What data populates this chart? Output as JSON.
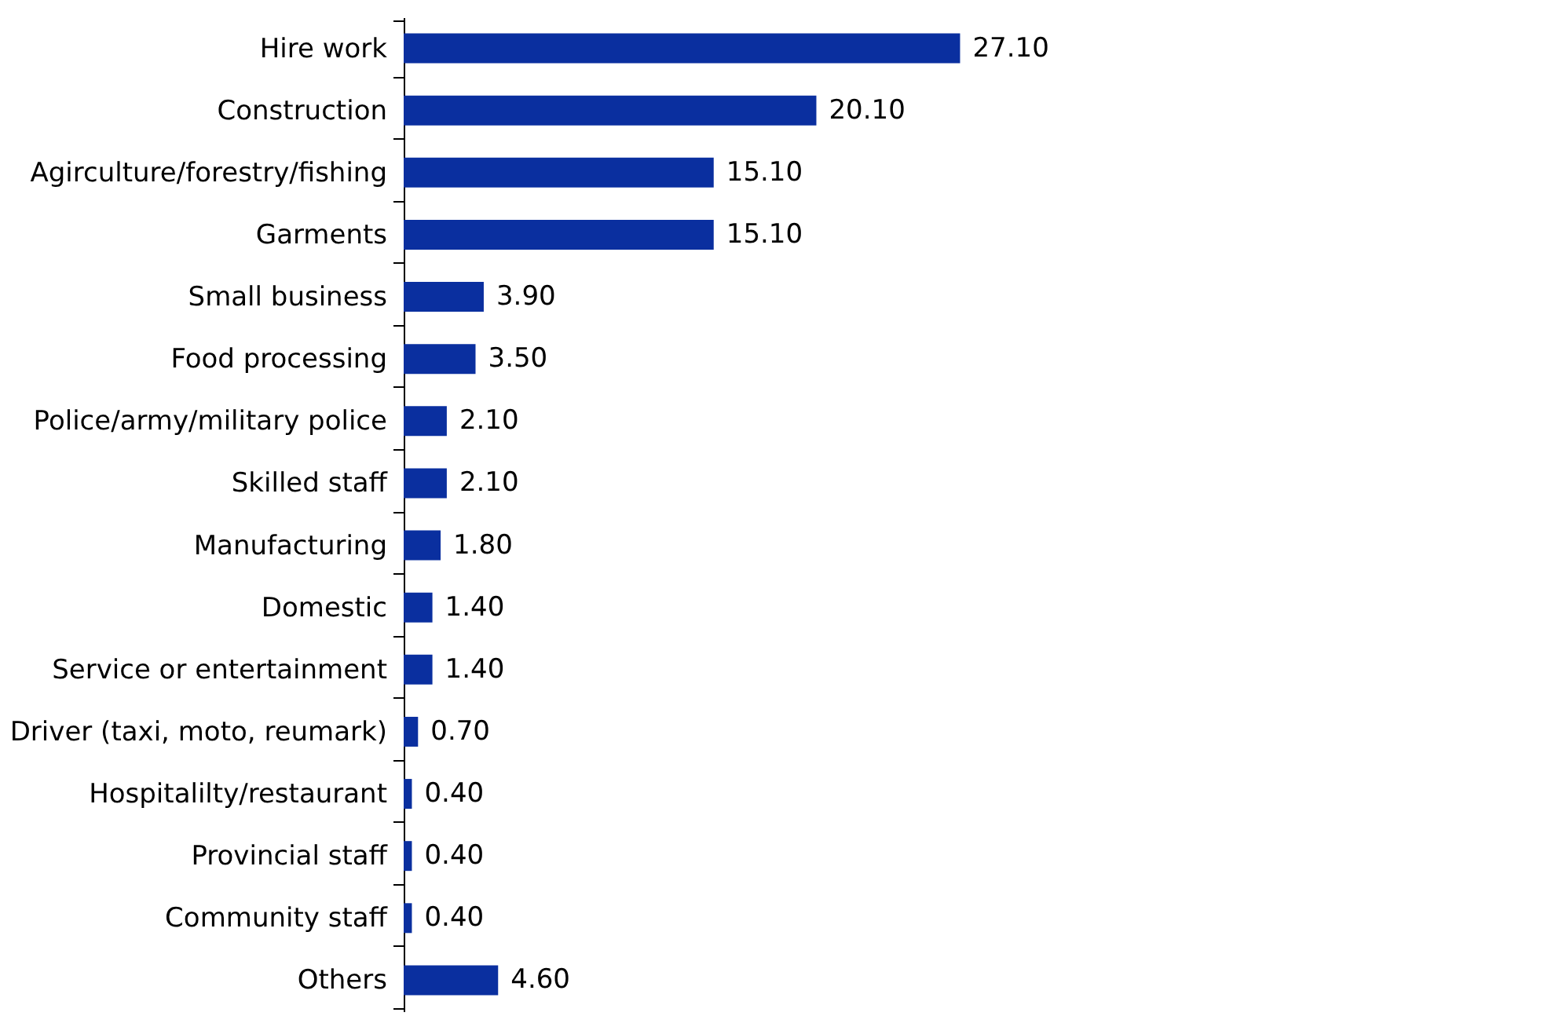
{
  "chart_data": {
    "type": "bar",
    "orientation": "horizontal",
    "categories": [
      "Hire work",
      "Construction",
      "Agirculture/forestry/fishing",
      "Garments",
      "Small business",
      "Food processing",
      "Police/army/military police",
      "Skilled staff",
      "Manufacturing",
      "Domestic",
      "Service or entertainment",
      "Driver (taxi, moto, reumark)",
      "Hospitalilty/restaurant",
      "Provincial staff",
      "Community staff",
      "Others"
    ],
    "values": [
      27.1,
      20.1,
      15.1,
      15.1,
      3.9,
      3.5,
      2.1,
      2.1,
      1.8,
      1.4,
      1.4,
      0.7,
      0.4,
      0.4,
      0.4,
      4.6
    ],
    "value_labels": [
      "27.10",
      "20.10",
      "15.10",
      "15.10",
      "3.90",
      "3.50",
      "2.10",
      "2.10",
      "1.80",
      "1.40",
      "1.40",
      "0.70",
      "0.40",
      "0.40",
      "0.40",
      "4.60"
    ],
    "color": "#0a2f9f",
    "grid": false
  }
}
